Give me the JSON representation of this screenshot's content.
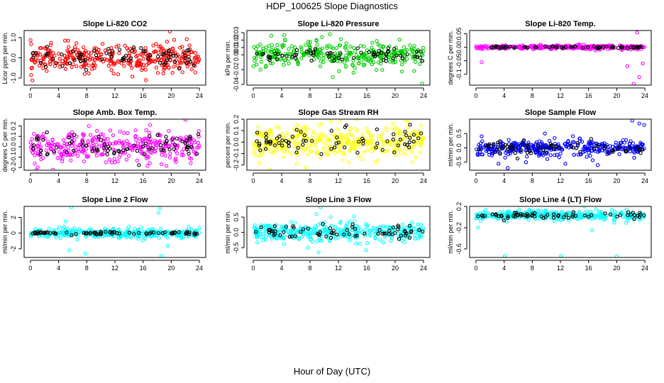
{
  "figure": {
    "title": "HDP_100625  Slope Diagnostics",
    "xlabel": "Hour of Day (UTC)"
  },
  "chart_data": [
    {
      "id": "co2",
      "type": "scatter",
      "title": "Slope Li-820 CO2",
      "ylabel": "Licor ppm per min.",
      "color": "#ff0000",
      "xlim": [
        -0.9,
        24.9
      ],
      "ylim": [
        -1.35,
        1.35
      ],
      "xticks": [
        0,
        4,
        8,
        12,
        16,
        20,
        24
      ],
      "yticks": [
        -1.0,
        0.0,
        1.0
      ],
      "ytick_labels": [
        "-1.0",
        "0.0",
        "1.0"
      ],
      "spread": 0.32,
      "bg_n": 340,
      "fg_n": 70,
      "fg_spread": 0.25,
      "outliers": [
        [
          0.1,
          -0.85
        ],
        [
          2.3,
          -0.65
        ],
        [
          5.0,
          -0.55
        ],
        [
          7.7,
          -0.8
        ],
        [
          15.8,
          -0.6
        ],
        [
          16.4,
          -1.1
        ],
        [
          18.1,
          -0.75
        ],
        [
          19.8,
          1.3
        ],
        [
          19.4,
          0.8
        ],
        [
          4.9,
          0.85
        ]
      ]
    },
    {
      "id": "pressure",
      "type": "scatter",
      "title": "Slope Li-820 Pressure",
      "ylabel": "kPa per min.",
      "color": "#00cc00",
      "xlim": [
        -0.9,
        24.9
      ],
      "ylim": [
        -0.041,
        0.033
      ],
      "xticks": [
        0,
        4,
        8,
        12,
        16,
        20,
        24
      ],
      "yticks": [
        -0.04,
        -0.02,
        0.0,
        0.01,
        0.02,
        0.03
      ],
      "ytick_labels": [
        "-0.04",
        "-0.02",
        "0.00",
        "0.01",
        "0.02",
        "0.03"
      ],
      "spread": 0.0085,
      "bg_n": 330,
      "fg_n": 65,
      "fg_spread": 0.004,
      "outliers": [
        [
          10.8,
          0.028
        ],
        [
          9.7,
          0.024
        ],
        [
          11.2,
          -0.03
        ],
        [
          23.8,
          -0.039
        ],
        [
          12.1,
          -0.022
        ],
        [
          1.0,
          -0.02
        ]
      ]
    },
    {
      "id": "li820temp",
      "type": "scatter",
      "title": "Slope Li-820 Temp.",
      "ylabel": "degrees C per min.",
      "color": "#ff00ff",
      "xlim": [
        -0.9,
        24.9
      ],
      "ylim": [
        -0.14,
        0.062
      ],
      "xticks": [
        0,
        4,
        8,
        12,
        16,
        20,
        24
      ],
      "yticks": [
        -0.1,
        -0.05,
        0.0,
        0.05
      ],
      "ytick_labels": [
        "-0.1",
        "-0.05",
        "0.00",
        "0.05"
      ],
      "spread": 0.004,
      "bg_n": 300,
      "fg_n": 60,
      "fg_spread": 0.002,
      "outliers": [
        [
          0.8,
          -0.055
        ],
        [
          22.4,
          -0.135
        ],
        [
          23.2,
          -0.11
        ],
        [
          22.9,
          0.055
        ],
        [
          21.5,
          -0.07
        ],
        [
          23.7,
          -0.06
        ]
      ]
    },
    {
      "id": "ambbox",
      "type": "scatter",
      "title": "Slope Amb. Box Temp.",
      "ylabel": "degrees C per min.",
      "color": "#ff00ff",
      "xlim": [
        -0.9,
        24.9
      ],
      "ylim": [
        -0.225,
        0.265
      ],
      "xticks": [
        0,
        4,
        8,
        12,
        16,
        20,
        24
      ],
      "yticks": [
        -0.2,
        -0.1,
        0.0,
        0.1,
        0.2
      ],
      "ytick_labels": [
        "-0.2",
        "-0.1",
        "0.0",
        "0.1",
        "0.2"
      ],
      "spread": 0.07,
      "bg_n": 340,
      "fg_n": 75,
      "fg_spread": 0.06,
      "outliers": [
        [
          3.2,
          -0.22
        ],
        [
          22.0,
          0.26
        ],
        [
          17.0,
          0.21
        ],
        [
          8.3,
          0.2
        ]
      ]
    },
    {
      "id": "rh",
      "type": "scatter",
      "title": "Slope Gas Stream RH",
      "ylabel": "percent per min.",
      "color": "#ffff00",
      "xlim": [
        -0.9,
        24.9
      ],
      "ylim": [
        -0.245,
        0.2
      ],
      "xticks": [
        0,
        4,
        8,
        12,
        16,
        20,
        24
      ],
      "yticks": [
        -0.2,
        -0.1,
        0.0,
        0.1,
        0.2
      ],
      "ytick_labels": [
        "-0.2",
        "-0.1",
        "0.0",
        "0.1",
        "0.2"
      ],
      "spread": 0.075,
      "bg_n": 360,
      "fg_n": 70,
      "fg_spread": 0.06,
      "outliers": [
        [
          2.3,
          -0.24
        ],
        [
          7.4,
          -0.22
        ],
        [
          11.0,
          0.18
        ]
      ]
    },
    {
      "id": "sampleflow",
      "type": "scatter",
      "title": "Slope Sample Flow",
      "ylabel": "ml/min per min.",
      "color": "#0000ff",
      "xlim": [
        -0.9,
        24.9
      ],
      "ylim": [
        -0.78,
        1.0
      ],
      "xticks": [
        0,
        4,
        8,
        12,
        16,
        20,
        24
      ],
      "yticks": [
        -0.5,
        0.0,
        0.5
      ],
      "ytick_labels": [
        "-0.5",
        "0.0",
        "0.5"
      ],
      "spread": 0.13,
      "bg_n": 340,
      "fg_n": 70,
      "fg_spread": 0.11,
      "outliers": [
        [
          23.2,
          0.85
        ],
        [
          22.2,
          0.95
        ],
        [
          23.9,
          0.8
        ],
        [
          4.5,
          -0.7
        ],
        [
          3.2,
          -0.55
        ],
        [
          0.8,
          0.4
        ],
        [
          9.8,
          0.5
        ],
        [
          12.7,
          -0.55
        ],
        [
          17.3,
          -0.6
        ],
        [
          7.1,
          -0.5
        ]
      ]
    },
    {
      "id": "line2",
      "type": "scatter",
      "title": "Slope Line 2 Flow",
      "ylabel": "ml/min per min.",
      "color": "#00ffff",
      "xlim": [
        -0.9,
        24.9
      ],
      "ylim": [
        -3.1,
        3.4
      ],
      "xticks": [
        0,
        4,
        8,
        12,
        16,
        20,
        24
      ],
      "yticks": [
        -2,
        0,
        2
      ],
      "ytick_labels": [
        "-2",
        "0",
        "2"
      ],
      "spread": 0.3,
      "bg_n": 320,
      "fg_n": 75,
      "fg_spread": 0.1,
      "outliers": [
        [
          5.8,
          3.3
        ],
        [
          18.4,
          3.2
        ],
        [
          18.2,
          2.6
        ],
        [
          5.5,
          -2.2
        ],
        [
          7.8,
          -2.6
        ],
        [
          18.6,
          -2.9
        ],
        [
          5.0,
          1.5
        ],
        [
          19.5,
          -1.6
        ]
      ]
    },
    {
      "id": "line3",
      "type": "scatter",
      "title": "Slope Line 3 Flow",
      "ylabel": "ml/min per min.",
      "color": "#00ffff",
      "xlim": [
        -0.9,
        24.9
      ],
      "ylim": [
        -0.82,
        0.85
      ],
      "xticks": [
        0,
        4,
        8,
        12,
        16,
        20,
        24
      ],
      "yticks": [
        -0.5,
        0.0,
        0.5
      ],
      "ytick_labels": [
        "-0.5",
        "0.0",
        "0.5"
      ],
      "spread": 0.15,
      "bg_n": 340,
      "fg_n": 70,
      "fg_spread": 0.12,
      "outliers": [
        [
          9.5,
          0.82
        ],
        [
          8.9,
          0.6
        ],
        [
          9.2,
          -0.65
        ],
        [
          15.9,
          -0.58
        ],
        [
          10.9,
          0.5
        ],
        [
          7.7,
          -0.5
        ]
      ]
    },
    {
      "id": "line4",
      "type": "scatter",
      "title": "Slope Line 4 (LT) Flow",
      "ylabel": "ml/min per min.",
      "color": "#00ffff",
      "xlim": [
        -0.9,
        24.9
      ],
      "ylim": [
        -0.76,
        0.2
      ],
      "xticks": [
        0,
        4,
        8,
        12,
        16,
        20,
        24
      ],
      "yticks": [
        -0.6,
        -0.2,
        0.2
      ],
      "ytick_labels": [
        "-0.6",
        "-0.2",
        "0.2"
      ],
      "spread": 0.045,
      "bg_n": 320,
      "fg_n": 65,
      "fg_spread": 0.03,
      "center": 0.03,
      "outliers": [
        [
          4.1,
          -0.73
        ],
        [
          12.1,
          -0.73
        ],
        [
          20.0,
          -0.74
        ],
        [
          16.5,
          -0.25
        ],
        [
          0.3,
          -0.2
        ]
      ]
    }
  ]
}
